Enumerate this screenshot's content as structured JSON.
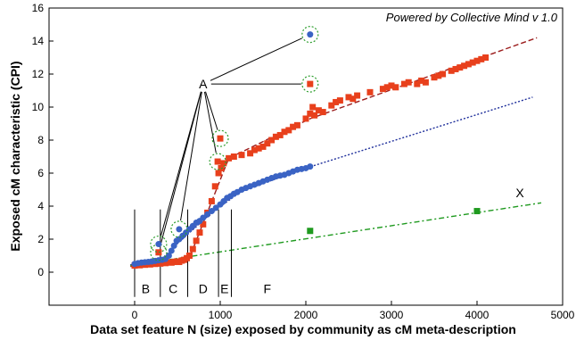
{
  "chart_data": {
    "type": "scatter",
    "credit": "Powered by Collective Mind v 1.0",
    "xlabel": "Data set feature N (size) exposed by community as cM meta-description",
    "ylabel": "Exposed cM characteristic (CPI)",
    "xlim": [
      -1000,
      5000
    ],
    "ylim": [
      -2,
      16
    ],
    "x_ticks": [
      0,
      1000,
      2000,
      3000,
      4000,
      5000
    ],
    "y_ticks": [
      0,
      2,
      4,
      6,
      8,
      10,
      12,
      14,
      16
    ],
    "grid": false,
    "legend": "none",
    "series": [
      {
        "marker": "square",
        "color": "#e8401c",
        "points": [
          [
            0,
            0.4
          ],
          [
            30,
            0.45
          ],
          [
            60,
            0.42
          ],
          [
            90,
            0.48
          ],
          [
            120,
            0.45
          ],
          [
            150,
            0.5
          ],
          [
            180,
            0.47
          ],
          [
            210,
            0.52
          ],
          [
            240,
            0.5
          ],
          [
            270,
            0.55
          ],
          [
            300,
            0.52
          ],
          [
            330,
            0.58
          ],
          [
            360,
            0.55
          ],
          [
            400,
            0.6
          ],
          [
            430,
            0.58
          ],
          [
            460,
            0.62
          ],
          [
            490,
            0.65
          ],
          [
            520,
            0.62
          ],
          [
            550,
            0.7
          ],
          [
            580,
            0.75
          ],
          [
            610,
            0.85
          ],
          [
            640,
            1.0
          ],
          [
            680,
            1.4
          ],
          [
            720,
            1.9
          ],
          [
            760,
            2.4
          ],
          [
            800,
            2.9
          ],
          [
            850,
            3.6
          ],
          [
            900,
            4.3
          ],
          [
            940,
            5.2
          ],
          [
            980,
            6.0
          ],
          [
            1010,
            6.3
          ],
          [
            1040,
            6.6
          ],
          [
            1100,
            6.9
          ],
          [
            1160,
            7.0
          ],
          [
            1250,
            7.1
          ],
          [
            1350,
            7.2
          ],
          [
            1400,
            7.4
          ],
          [
            1450,
            7.5
          ],
          [
            1500,
            7.6
          ],
          [
            1550,
            7.8
          ],
          [
            1600,
            8.0
          ],
          [
            1650,
            8.2
          ],
          [
            1700,
            8.3
          ],
          [
            1750,
            8.5
          ],
          [
            1800,
            8.6
          ],
          [
            1850,
            8.8
          ],
          [
            1900,
            8.9
          ],
          [
            2000,
            9.3
          ],
          [
            2050,
            9.6
          ],
          [
            2080,
            10.0
          ],
          [
            2100,
            9.5
          ],
          [
            2150,
            9.8
          ],
          [
            2200,
            9.7
          ],
          [
            2300,
            10.1
          ],
          [
            2350,
            10.3
          ],
          [
            2400,
            10.4
          ],
          [
            2500,
            10.6
          ],
          [
            2550,
            10.5
          ],
          [
            2600,
            10.7
          ],
          [
            2750,
            10.9
          ],
          [
            2900,
            11.1
          ],
          [
            2950,
            11.2
          ],
          [
            3000,
            11.3
          ],
          [
            3050,
            11.2
          ],
          [
            3150,
            11.4
          ],
          [
            3200,
            11.5
          ],
          [
            3300,
            11.4
          ],
          [
            3350,
            11.6
          ],
          [
            3400,
            11.5
          ],
          [
            3500,
            11.8
          ],
          [
            3550,
            11.9
          ],
          [
            3600,
            12.0
          ],
          [
            3700,
            12.2
          ],
          [
            3750,
            12.3
          ],
          [
            3800,
            12.4
          ],
          [
            3850,
            12.5
          ],
          [
            3900,
            12.6
          ],
          [
            3950,
            12.7
          ],
          [
            4000,
            12.8
          ],
          [
            4050,
            12.9
          ],
          [
            4100,
            13.0
          ]
        ]
      },
      {
        "marker": "circle",
        "color": "#3a63c4",
        "points": [
          [
            0,
            0.5
          ],
          [
            40,
            0.55
          ],
          [
            80,
            0.58
          ],
          [
            120,
            0.6
          ],
          [
            160,
            0.62
          ],
          [
            200,
            0.65
          ],
          [
            240,
            0.68
          ],
          [
            280,
            0.72
          ],
          [
            320,
            0.75
          ],
          [
            360,
            0.8
          ],
          [
            400,
            1.0
          ],
          [
            430,
            1.3
          ],
          [
            460,
            1.6
          ],
          [
            490,
            1.9
          ],
          [
            520,
            2.0
          ],
          [
            560,
            2.2
          ],
          [
            600,
            2.4
          ],
          [
            640,
            2.6
          ],
          [
            680,
            2.8
          ],
          [
            720,
            3.0
          ],
          [
            760,
            3.1
          ],
          [
            800,
            3.3
          ],
          [
            850,
            3.5
          ],
          [
            900,
            3.7
          ],
          [
            950,
            3.9
          ],
          [
            1000,
            4.1
          ],
          [
            1040,
            4.3
          ],
          [
            1080,
            4.5
          ],
          [
            1120,
            4.6
          ],
          [
            1160,
            4.75
          ],
          [
            1200,
            4.85
          ],
          [
            1250,
            5.0
          ],
          [
            1300,
            5.1
          ],
          [
            1350,
            5.2
          ],
          [
            1400,
            5.3
          ],
          [
            1450,
            5.4
          ],
          [
            1500,
            5.5
          ],
          [
            1550,
            5.6
          ],
          [
            1600,
            5.7
          ],
          [
            1650,
            5.8
          ],
          [
            1700,
            5.85
          ],
          [
            1750,
            5.9
          ],
          [
            1800,
            6.0
          ],
          [
            1850,
            6.1
          ],
          [
            1900,
            6.2
          ],
          [
            1950,
            6.25
          ],
          [
            2000,
            6.3
          ],
          [
            2050,
            6.4
          ]
        ]
      },
      {
        "marker": "square",
        "color": "#1f9a1f",
        "points": [
          [
            2050,
            2.5
          ],
          [
            4000,
            3.7
          ]
        ]
      }
    ],
    "outliers": [
      {
        "x": 280,
        "y": 1.2,
        "marker": "square",
        "color": "#e8401c"
      },
      {
        "x": 280,
        "y": 1.7,
        "marker": "circle",
        "color": "#3a63c4"
      },
      {
        "x": 520,
        "y": 2.6,
        "marker": "circle",
        "color": "#3a63c4"
      },
      {
        "x": 1000,
        "y": 8.1,
        "marker": "square",
        "color": "#e8401c"
      },
      {
        "x": 970,
        "y": 6.7,
        "marker": "square",
        "color": "#e8401c"
      },
      {
        "x": 2050,
        "y": 14.4,
        "marker": "circle",
        "color": "#3a63c4"
      },
      {
        "x": 2050,
        "y": 11.4,
        "marker": "square",
        "color": "#e8401c"
      }
    ],
    "trend_lines": [
      {
        "color": "#9b1c1c",
        "style": "dashed",
        "points": [
          [
            -50,
            0.35
          ],
          [
            300,
            0.45
          ],
          [
            600,
            0.7
          ],
          [
            650,
            1.0
          ],
          [
            1100,
            6.9
          ],
          [
            2050,
            9.3
          ],
          [
            4700,
            14.2
          ]
        ]
      },
      {
        "color": "#1f2f9b",
        "style": "dotted",
        "points": [
          [
            -50,
            0.45
          ],
          [
            300,
            0.7
          ],
          [
            450,
            1.5
          ],
          [
            900,
            3.6
          ],
          [
            1250,
            4.9
          ],
          [
            2000,
            6.3
          ],
          [
            4650,
            10.6
          ]
        ]
      },
      {
        "color": "#1f9a1f",
        "style": "dashdot",
        "points": [
          [
            -50,
            0.4
          ],
          [
            4750,
            4.2
          ]
        ]
      }
    ],
    "annotations": {
      "A": {
        "label": "A",
        "x": 800,
        "y": 11.4
      },
      "X": {
        "label": "X",
        "x": 4500,
        "y": 4.8
      },
      "regions": [
        {
          "label": "B",
          "x": 130
        },
        {
          "label": "C",
          "x": 450
        },
        {
          "label": "D",
          "x": 800
        },
        {
          "label": "E",
          "x": 1050
        },
        {
          "label": "F",
          "x": 1550
        }
      ],
      "region_boundaries": [
        0,
        300,
        620,
        980,
        1130
      ],
      "region_label_y": -1.0,
      "region_line_top": 3.8
    }
  }
}
